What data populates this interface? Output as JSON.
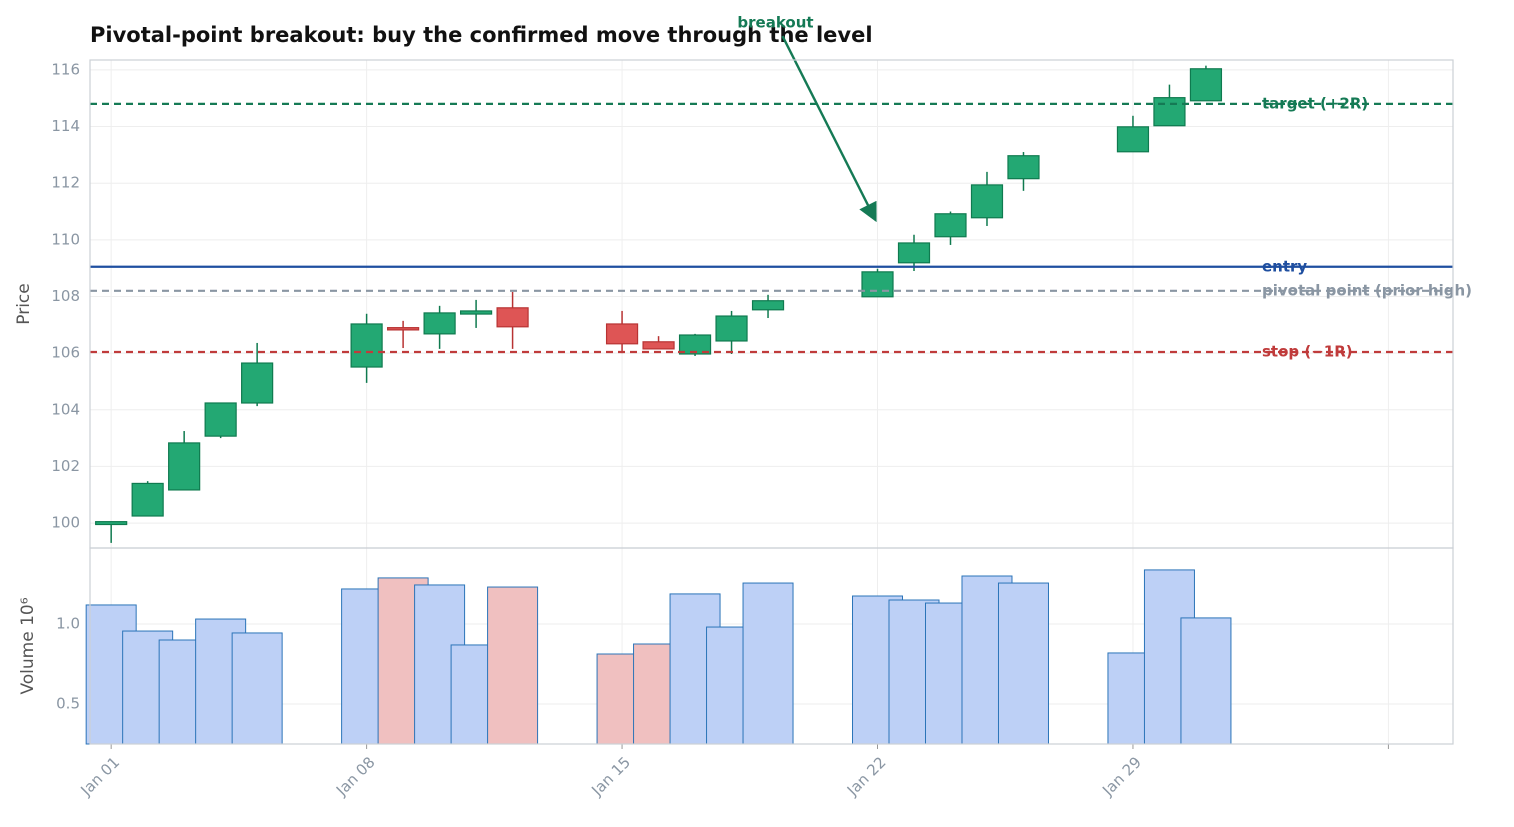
{
  "chart_data": [
    {
      "type": "candlestick",
      "title": "Pivotal-point breakout: buy the confirmed move through the level",
      "ylabel": "Price",
      "x": [
        "Jan 01",
        "Jan 02",
        "Jan 03",
        "Jan 04",
        "Jan 05",
        "Jan 08",
        "Jan 09",
        "Jan 10",
        "Jan 11",
        "Jan 12",
        "Jan 15",
        "Jan 16",
        "Jan 17",
        "Jan 18",
        "Jan 19",
        "Jan 22",
        "Jan 23",
        "Jan 24",
        "Jan 25",
        "Jan 26",
        "Jan 29",
        "Jan 30",
        "Jan 31"
      ],
      "open": [
        99.95,
        100.25,
        101.17,
        103.07,
        104.24,
        105.51,
        106.9,
        106.68,
        107.38,
        107.6,
        107.03,
        106.4,
        105.97,
        106.43,
        107.53,
        107.99,
        109.19,
        110.11,
        110.78,
        112.16,
        113.11,
        114.03,
        114.91
      ],
      "high": [
        100.05,
        101.48,
        103.25,
        104.25,
        106.36,
        107.39,
        107.14,
        107.67,
        107.88,
        108.16,
        107.49,
        106.6,
        106.68,
        107.49,
        108.06,
        108.98,
        110.18,
        111.0,
        112.4,
        113.1,
        114.38,
        115.48,
        116.15
      ],
      "low": [
        99.3,
        100.25,
        101.15,
        103.0,
        104.13,
        104.95,
        106.18,
        106.15,
        106.89,
        106.15,
        106.0,
        106.15,
        105.9,
        105.97,
        107.24,
        107.99,
        108.9,
        109.82,
        110.49,
        111.73,
        113.11,
        114.03,
        114.91
      ],
      "close": [
        100.05,
        101.4,
        102.83,
        104.24,
        105.65,
        107.03,
        106.82,
        107.42,
        107.49,
        106.93,
        106.33,
        106.15,
        106.64,
        107.31,
        107.85,
        108.87,
        109.89,
        110.92,
        111.94,
        112.97,
        113.99,
        115.02,
        116.04
      ],
      "up_color": "#23a873",
      "up_edge": "#0f7a4f",
      "down_color": "#de5555",
      "down_edge": "#b83333",
      "xlim": [
        0.42,
        37.77
      ],
      "xticks": [
        {
          "value": 1,
          "label": "Jan 01"
        },
        {
          "value": 8,
          "label": "Jan 08"
        },
        {
          "value": 15,
          "label": "Jan 15"
        },
        {
          "value": 22,
          "label": "Jan 22"
        },
        {
          "value": 29,
          "label": "Jan 29"
        },
        {
          "value": 36,
          "label": null
        }
      ],
      "ylim": [
        99.12,
        116.35
      ],
      "yticks": [
        100,
        102,
        104,
        106,
        108,
        110,
        112,
        114,
        116
      ],
      "grid": true,
      "levels": [
        {
          "label": "target (+2R)",
          "value": 114.8,
          "color": "#157a55",
          "dashed": true
        },
        {
          "label": "entry",
          "value": 109.05,
          "color": "#1f4fa0",
          "dashed": false
        },
        {
          "label": "pivotal point (prior high)",
          "value": 108.2,
          "color": "#8a96a3",
          "dashed": true
        },
        {
          "label": "stop (−1R)",
          "value": 106.04,
          "color": "#c03b3b",
          "dashed": true
        }
      ],
      "annotations": [
        {
          "text": "breakout",
          "x": "Jan 22",
          "y": 110.7,
          "color": "#157a55"
        }
      ]
    },
    {
      "type": "bar",
      "ylabel": "Volume  10⁶",
      "values": [
        1.119,
        0.956,
        0.9,
        1.031,
        0.944,
        1.219,
        1.288,
        1.244,
        0.869,
        1.231,
        0.8125,
        0.875,
        1.188,
        0.981,
        1.256,
        1.175,
        1.15,
        1.131,
        1.3,
        1.256,
        0.819,
        1.338,
        1.038
      ],
      "up_color": "#bdd0f6",
      "down_color": "#f0c0c0",
      "edge_color": "#2b74b8",
      "ylim": [
        0.25,
        1.475
      ],
      "yticks": [
        0.5,
        {
          "value": 1,
          "label": "1.0"
        }
      ],
      "grid": true
    }
  ]
}
